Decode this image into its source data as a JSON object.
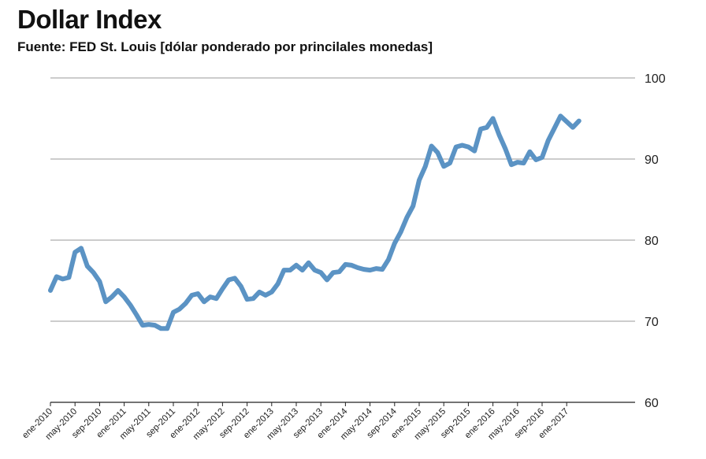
{
  "chart_data": {
    "type": "line",
    "title": "Dollar Index",
    "subtitle": "Fuente: FED St. Louis [dólar ponderado por princilales monedas]",
    "xlabel": "",
    "ylabel": "",
    "ylim": [
      60,
      100
    ],
    "yticks": [
      60,
      70,
      80,
      90,
      100
    ],
    "grid": true,
    "legend": "none",
    "line_color": "#5b93c4",
    "x_tick_labels": [
      "ene-2010",
      "may-2010",
      "sep-2010",
      "ene-2011",
      "may-2011",
      "sep-2011",
      "ene-2012",
      "may-2012",
      "sep-2012",
      "ene-2013",
      "may-2013",
      "sep-2013",
      "ene-2014",
      "may-2014",
      "sep-2014",
      "ene-2015",
      "may-2015",
      "sep-2015",
      "ene-2016",
      "may-2016",
      "sep-2016",
      "ene-2017"
    ],
    "series": [
      {
        "values": [
          73.8,
          75.5,
          75.2,
          75.4,
          78.5,
          79.0,
          76.8,
          76.0,
          74.9,
          72.4,
          73.0,
          73.8,
          73.0,
          72.0,
          70.8,
          69.5,
          69.6,
          69.5,
          69.1,
          69.1,
          71.1,
          71.5,
          72.2,
          73.2,
          73.4,
          72.4,
          73.0,
          72.8,
          74.0,
          75.1,
          75.3,
          74.3,
          72.7,
          72.8,
          73.6,
          73.2,
          73.6,
          74.6,
          76.3,
          76.3,
          76.9,
          76.3,
          77.2,
          76.3,
          76.0,
          75.1,
          76.0,
          76.1,
          77.0,
          76.9,
          76.6,
          76.4,
          76.3,
          76.5,
          76.4,
          77.6,
          79.6,
          81.0,
          82.8,
          84.2,
          87.4,
          89.1,
          91.6,
          90.8,
          89.1,
          89.5,
          91.5,
          91.7,
          91.5,
          91.0,
          93.7,
          93.9,
          95.0,
          93.0,
          91.3,
          89.3,
          89.6,
          89.5,
          90.9,
          89.9,
          90.2,
          92.3,
          93.8,
          95.3,
          94.6,
          93.9,
          94.7
        ]
      }
    ]
  }
}
